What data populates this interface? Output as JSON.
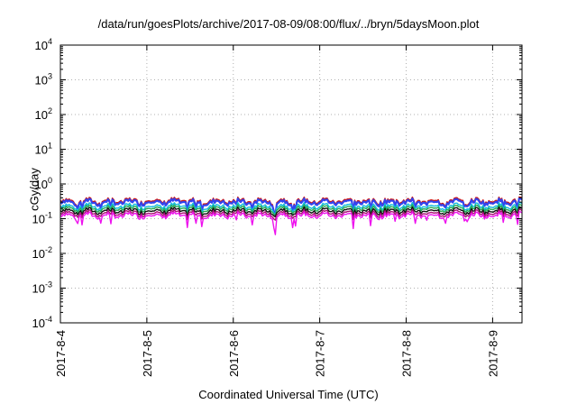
{
  "chart_data": {
    "type": "line",
    "title": "/data/run/goesPlots/archive/2017-08-09/08:00/flux/../bryn/5daysMoon.plot",
    "xlabel": "Coordinated Universal Time (UTC)",
    "ylabel": "cGy/day",
    "y_scale": "log",
    "ylim_exp": [
      -4,
      4
    ],
    "y_ticks": [
      {
        "base": "10",
        "exp": "-4"
      },
      {
        "base": "10",
        "exp": "-3"
      },
      {
        "base": "10",
        "exp": "-2"
      },
      {
        "base": "10",
        "exp": "-1"
      },
      {
        "base": "10",
        "exp": "0"
      },
      {
        "base": "10",
        "exp": "1"
      },
      {
        "base": "10",
        "exp": "2"
      },
      {
        "base": "10",
        "exp": "3"
      },
      {
        "base": "10",
        "exp": "4"
      }
    ],
    "x_start_date": "2017-08-04",
    "x_end_day_fraction": 5.34,
    "x_ticks": [
      "2017-8-4",
      "2017-8-5",
      "2017-8-6",
      "2017-8-7",
      "2017-8-8",
      "2017-8-9"
    ],
    "grid": true,
    "grid_style": "dotted",
    "series": [
      {
        "color": "#cc1111",
        "level": 0.33,
        "dip_depth": 0.45
      },
      {
        "color": "#3344ee",
        "level": 0.3,
        "dip_depth": 0.42
      },
      {
        "color": "#11bbdd",
        "level": 0.23,
        "dip_depth": 0.3
      },
      {
        "color": "#22aa55",
        "level": 0.2,
        "dip_depth": 0.25
      },
      {
        "color": "#111111",
        "level": 0.17,
        "dip_depth": 0.22
      },
      {
        "color": "#aa1177",
        "level": 0.145,
        "dip_depth": 0.25
      },
      {
        "color": "#ee11ee",
        "level": 0.125,
        "dip_depth": 0.55
      }
    ]
  }
}
